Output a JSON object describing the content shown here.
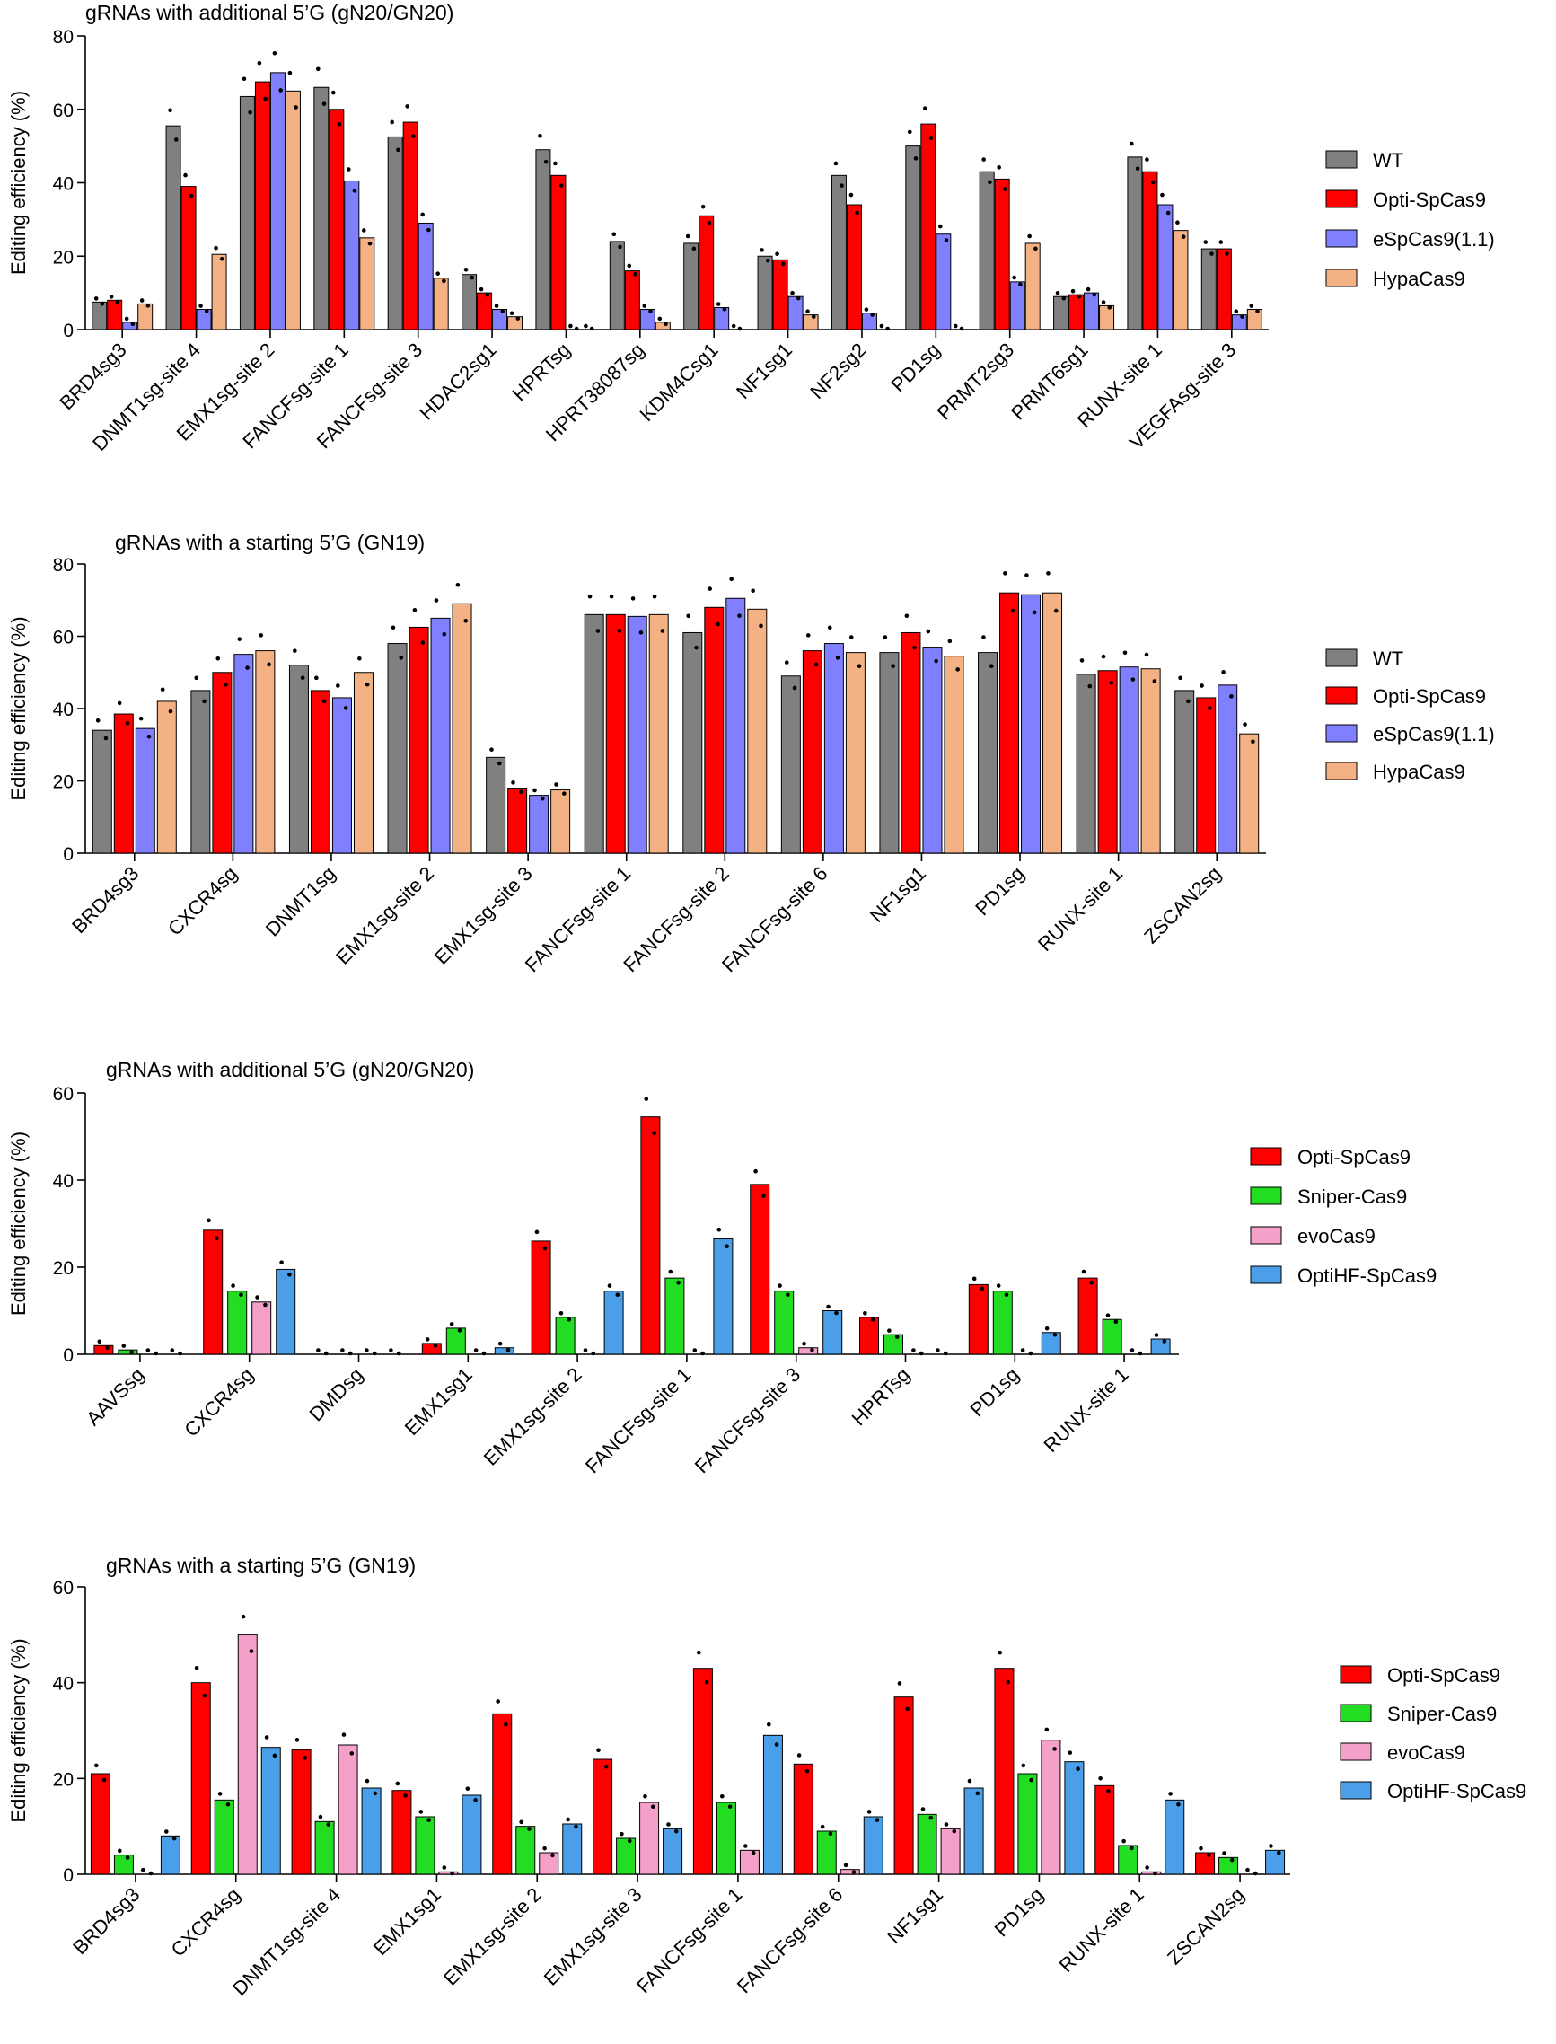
{
  "chart_data": [
    {
      "type": "bar",
      "title": "gRNAs with additional  5’G (gN20/GN20)",
      "ylabel": "Editing efficiency  (%)",
      "xlabel": "",
      "ylim": [
        0,
        80
      ],
      "yticks": [
        0,
        20,
        40,
        60,
        80
      ],
      "legend_placement": "right",
      "categories": [
        "BRD4sg3",
        "DNMT1sg-site 4",
        "EMX1sg-site 2",
        "FANCFsg-site 1",
        "FANCFsg-site 3",
        "HDAC2sg1",
        "HPRTsg",
        "HPRT38087sg",
        "KDM4Csg1",
        "NF1sg1",
        "NF2sg2",
        "PD1sg",
        "PRMT2sg3",
        "PRMT6sg1",
        "RUNX-site 1",
        "VEGFAsg-site 3"
      ],
      "series": [
        {
          "name": "WT",
          "color": "#808080",
          "values": [
            7.5,
            55.5,
            63.5,
            66,
            52.5,
            15,
            49,
            24,
            23.5,
            20,
            42,
            50,
            43,
            9,
            47,
            22
          ]
        },
        {
          "name": "Opti-SpCas9",
          "color": "#ff0000",
          "values": [
            8,
            39,
            67.5,
            60,
            56.5,
            10,
            42,
            16,
            31,
            19,
            34,
            56,
            41,
            9.5,
            43,
            22
          ]
        },
        {
          "name": "eSpCas9(1.1)",
          "color": "#8080ff",
          "values": [
            2,
            5.5,
            70,
            40.5,
            29,
            5.5,
            0,
            5.5,
            6,
            9,
            4.5,
            26,
            13,
            10,
            34,
            4
          ]
        },
        {
          "name": "HypaCas9",
          "color": "#f4b183",
          "values": [
            7,
            20.5,
            65,
            25,
            14,
            3.5,
            0,
            2,
            0,
            4,
            0,
            0,
            23.5,
            6.5,
            27,
            5.5
          ]
        }
      ]
    },
    {
      "type": "bar",
      "title": "gRNAs with a starting  5’G (GN19)",
      "ylabel": "Editing efficiency  (%)",
      "xlabel": "",
      "ylim": [
        0,
        80
      ],
      "yticks": [
        0,
        20,
        40,
        60,
        80
      ],
      "legend_placement": "right",
      "categories": [
        "BRD4sg3",
        "CXCR4sg",
        "DNMT1sg",
        "EMX1sg-site 2",
        "EMX1sg-site 3",
        "FANCFsg-site 1",
        "FANCFsg-site 2",
        "FANCFsg-site 6",
        "NF1sg1",
        "PD1sg",
        "RUNX-site 1",
        "ZSCAN2sg"
      ],
      "series": [
        {
          "name": "WT",
          "color": "#808080",
          "values": [
            34,
            45,
            52,
            58,
            26.5,
            66,
            61,
            49,
            55.5,
            55.5,
            49.5,
            45
          ]
        },
        {
          "name": "Opti-SpCas9",
          "color": "#ff0000",
          "values": [
            38.5,
            50,
            45,
            62.5,
            18,
            66,
            68,
            56,
            61,
            72,
            50.5,
            43
          ]
        },
        {
          "name": "eSpCas9(1.1)",
          "color": "#8080ff",
          "values": [
            34.5,
            55,
            43,
            65,
            16,
            65.5,
            70.5,
            58,
            57,
            71.5,
            51.5,
            46.5
          ]
        },
        {
          "name": "HypaCas9",
          "color": "#f4b183",
          "values": [
            42,
            56,
            50,
            69,
            17.5,
            66,
            67.5,
            55.5,
            54.5,
            72,
            51,
            33
          ]
        }
      ]
    },
    {
      "type": "bar",
      "title": "gRNAs with additional  5’G (gN20/GN20)",
      "ylabel": "Editing efficiency  (%)",
      "xlabel": "",
      "ylim": [
        0,
        60
      ],
      "yticks": [
        0,
        20,
        40,
        60
      ],
      "legend_placement": "right",
      "categories": [
        "AAVSsg",
        "CXCR4sg",
        "DMDsg",
        "EMX1sg1",
        "EMX1sg-site 2",
        "FANCFsg-site 1",
        "FANCFsg-site 3",
        "HPRTsg",
        "PD1sg",
        "RUNX-site 1"
      ],
      "series": [
        {
          "name": "Opti-SpCas9",
          "color": "#ff0000",
          "values": [
            2,
            28.5,
            0,
            2.5,
            26,
            54.5,
            39,
            8.5,
            16,
            17.5
          ]
        },
        {
          "name": "Sniper-Cas9",
          "color": "#22dd22",
          "values": [
            1,
            14.5,
            0,
            6,
            8.5,
            17.5,
            14.5,
            4.5,
            14.5,
            8
          ]
        },
        {
          "name": "evoCas9",
          "color": "#f4a0c8",
          "values": [
            0,
            12,
            0,
            0,
            0,
            0,
            1.5,
            0,
            0,
            0
          ]
        },
        {
          "name": "OptiHF-SpCas9",
          "color": "#4a9fe8",
          "values": [
            0,
            19.5,
            0,
            1.5,
            14.5,
            26.5,
            10,
            0,
            5,
            3.5
          ]
        }
      ]
    },
    {
      "type": "bar",
      "title": "gRNAs with a starting  5’G (GN19)",
      "ylabel": "Editing efficiency  (%)",
      "xlabel": "",
      "ylim": [
        0,
        60
      ],
      "yticks": [
        0,
        20,
        40,
        60
      ],
      "legend_placement": "right",
      "categories": [
        "BRD4sg3",
        "CXCR4sg",
        "DNMT1sg-site 4",
        "EMX1sg1",
        "EMX1sg-site 2",
        "EMX1sg-site 3",
        "FANCFsg-site 1",
        "FANCFsg-site 6",
        "NF1sg1",
        "PD1sg",
        "RUNX-site 1",
        "ZSCAN2sg"
      ],
      "series": [
        {
          "name": "Opti-SpCas9",
          "color": "#ff0000",
          "values": [
            21,
            40,
            26,
            17.5,
            33.5,
            24,
            43,
            23,
            37,
            43,
            18.5,
            4.5
          ]
        },
        {
          "name": "Sniper-Cas9",
          "color": "#22dd22",
          "values": [
            4,
            15.5,
            11,
            12,
            10,
            7.5,
            15,
            9,
            12.5,
            21,
            6,
            3.5
          ]
        },
        {
          "name": "evoCas9",
          "color": "#f4a0c8",
          "values": [
            0,
            50,
            27,
            0.5,
            4.5,
            15,
            5,
            1,
            9.5,
            28,
            0.5,
            0
          ]
        },
        {
          "name": "OptiHF-SpCas9",
          "color": "#4a9fe8",
          "values": [
            8,
            26.5,
            18,
            16.5,
            10.5,
            9.5,
            29,
            12,
            18,
            23.5,
            15.5,
            5
          ]
        }
      ]
    }
  ]
}
